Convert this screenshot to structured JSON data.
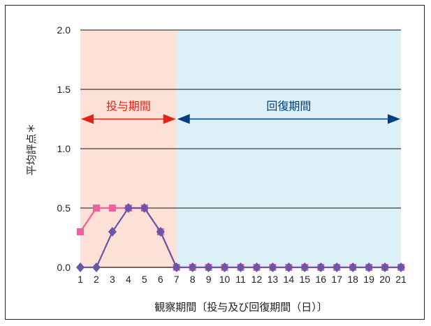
{
  "chart_data": {
    "type": "line",
    "title": "",
    "xlabel": "観察期間〔投与及び回復期間（日）〕",
    "ylabel": "平均評点＊",
    "ylim": [
      0,
      2.0
    ],
    "y_ticks": [
      "0.0",
      "0.5",
      "1.0",
      "1.5",
      "2.0"
    ],
    "x": [
      1,
      2,
      3,
      4,
      5,
      6,
      7,
      8,
      9,
      10,
      11,
      12,
      13,
      14,
      15,
      16,
      17,
      18,
      19,
      20,
      21
    ],
    "x_ticks": [
      "1",
      "2",
      "3",
      "4",
      "5",
      "6",
      "7",
      "8",
      "9",
      "10",
      "11",
      "12",
      "13",
      "14",
      "15",
      "16",
      "17",
      "18",
      "19",
      "20",
      "21"
    ],
    "grid": "horizontal",
    "series": [
      {
        "color": "#f0609e",
        "marker": "square",
        "values": [
          0.3,
          0.5,
          0.5,
          0.5,
          0.5,
          0.3,
          0,
          0,
          0,
          0,
          0,
          0,
          0,
          0,
          0,
          0,
          0,
          0,
          0,
          0,
          0
        ]
      },
      {
        "color": "#6a56a8",
        "marker": "diamond",
        "values": [
          0,
          0,
          0.3,
          0.5,
          0.5,
          0.3,
          0,
          0,
          0,
          0,
          0,
          0,
          0,
          0,
          0,
          0,
          0,
          0,
          0,
          0,
          0
        ]
      }
    ],
    "regions": [
      {
        "label": "投与期間",
        "from": 1,
        "to": 7,
        "fill": "#fde1d6",
        "arrow_color": "#e2231a"
      },
      {
        "label": "回復期間",
        "from": 7,
        "to": 21,
        "fill": "#dcf0f8",
        "arrow_color": "#003f7f"
      }
    ],
    "colors": {
      "grid": "#111111",
      "axis": "#111111"
    }
  }
}
